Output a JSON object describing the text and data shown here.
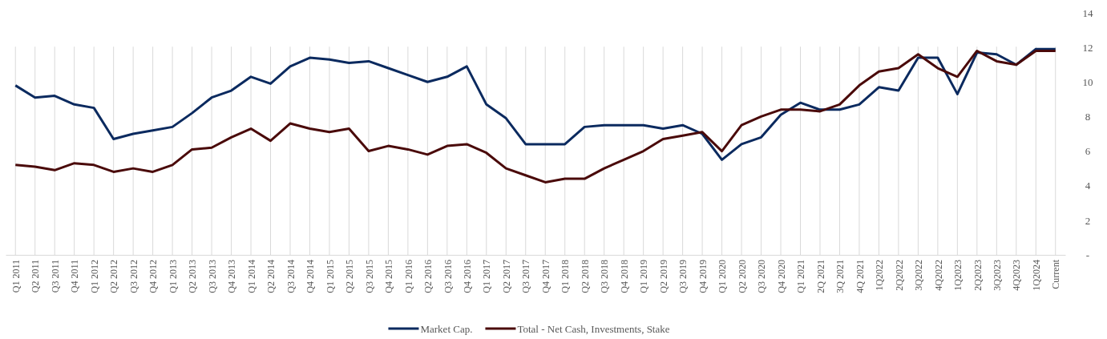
{
  "chart_data": {
    "type": "line",
    "categories": [
      "Q1 2011",
      "Q2 2011",
      "Q3 2011",
      "Q4 2011",
      "Q1 2012",
      "Q2 2012",
      "Q3 2012",
      "Q4 2012",
      "Q1 2013",
      "Q2 2013",
      "Q3 2013",
      "Q4 2013",
      "Q1 2014",
      "Q2 2014",
      "Q3 2014",
      "Q4 2014",
      "Q1 2015",
      "Q2 2015",
      "Q3 2015",
      "Q4 2015",
      "Q1 2016",
      "Q2 2016",
      "Q3 2016",
      "Q4 2016",
      "Q1 2017",
      "Q2 2017",
      "Q3 2017",
      "Q4 2017",
      "Q1 2018",
      "Q2 2018",
      "Q3 2018",
      "Q4 2018",
      "Q1 2019",
      "Q2 2019",
      "Q3 2019",
      "Q4 2019",
      "Q1 2020",
      "Q2 2020",
      "Q3 2020",
      "Q4 2020",
      "Q1 2021",
      "2Q 2021",
      "3Q 2021",
      "4Q 2021",
      "1Q2022",
      "2Q2022",
      "3Q2022",
      "4Q2022",
      "1Q2023",
      "2Q2023",
      "3Q2023",
      "4Q2023",
      "1Q2024",
      "Current"
    ],
    "series": [
      {
        "name": "Market Cap.",
        "color": "#0b2a5f",
        "values": [
          9.8,
          9.1,
          9.2,
          8.7,
          8.5,
          6.7,
          7.0,
          7.2,
          7.4,
          8.2,
          9.1,
          9.5,
          10.3,
          9.9,
          10.9,
          11.4,
          11.3,
          11.1,
          11.2,
          10.8,
          10.4,
          10.0,
          10.3,
          10.9,
          8.7,
          7.9,
          6.4,
          6.4,
          6.4,
          7.4,
          7.5,
          7.5,
          7.5,
          7.3,
          7.5,
          7.0,
          5.5,
          6.4,
          6.8,
          8.1,
          8.8,
          8.4,
          8.4,
          8.7,
          9.7,
          9.5,
          11.4,
          11.4,
          9.3,
          11.7,
          11.6,
          11.0,
          11.9,
          11.9
        ]
      },
      {
        "name": "Total - Net Cash, Investments, Stake",
        "color": "#4a0a0a",
        "values": [
          5.2,
          5.1,
          4.9,
          5.3,
          5.2,
          4.8,
          5.0,
          4.8,
          5.2,
          6.1,
          6.2,
          6.8,
          7.3,
          6.6,
          7.6,
          7.3,
          7.1,
          7.3,
          6.0,
          6.3,
          6.1,
          5.8,
          6.3,
          6.4,
          5.9,
          5.0,
          4.6,
          4.2,
          4.4,
          4.4,
          5.0,
          5.5,
          6.0,
          6.7,
          6.9,
          7.1,
          6.0,
          7.5,
          8.0,
          8.4,
          8.4,
          8.3,
          8.7,
          9.8,
          10.6,
          10.8,
          11.6,
          10.8,
          10.3,
          11.8,
          11.2,
          11.0,
          11.8,
          11.8
        ]
      }
    ],
    "ylim": [
      0,
      14
    ],
    "yticks": [
      {
        "value": 0,
        "label": "-"
      },
      2,
      4,
      6,
      8,
      10,
      12,
      14
    ],
    "grid": "x",
    "legend": "bottom",
    "marker": "none",
    "line_style": "solid"
  }
}
